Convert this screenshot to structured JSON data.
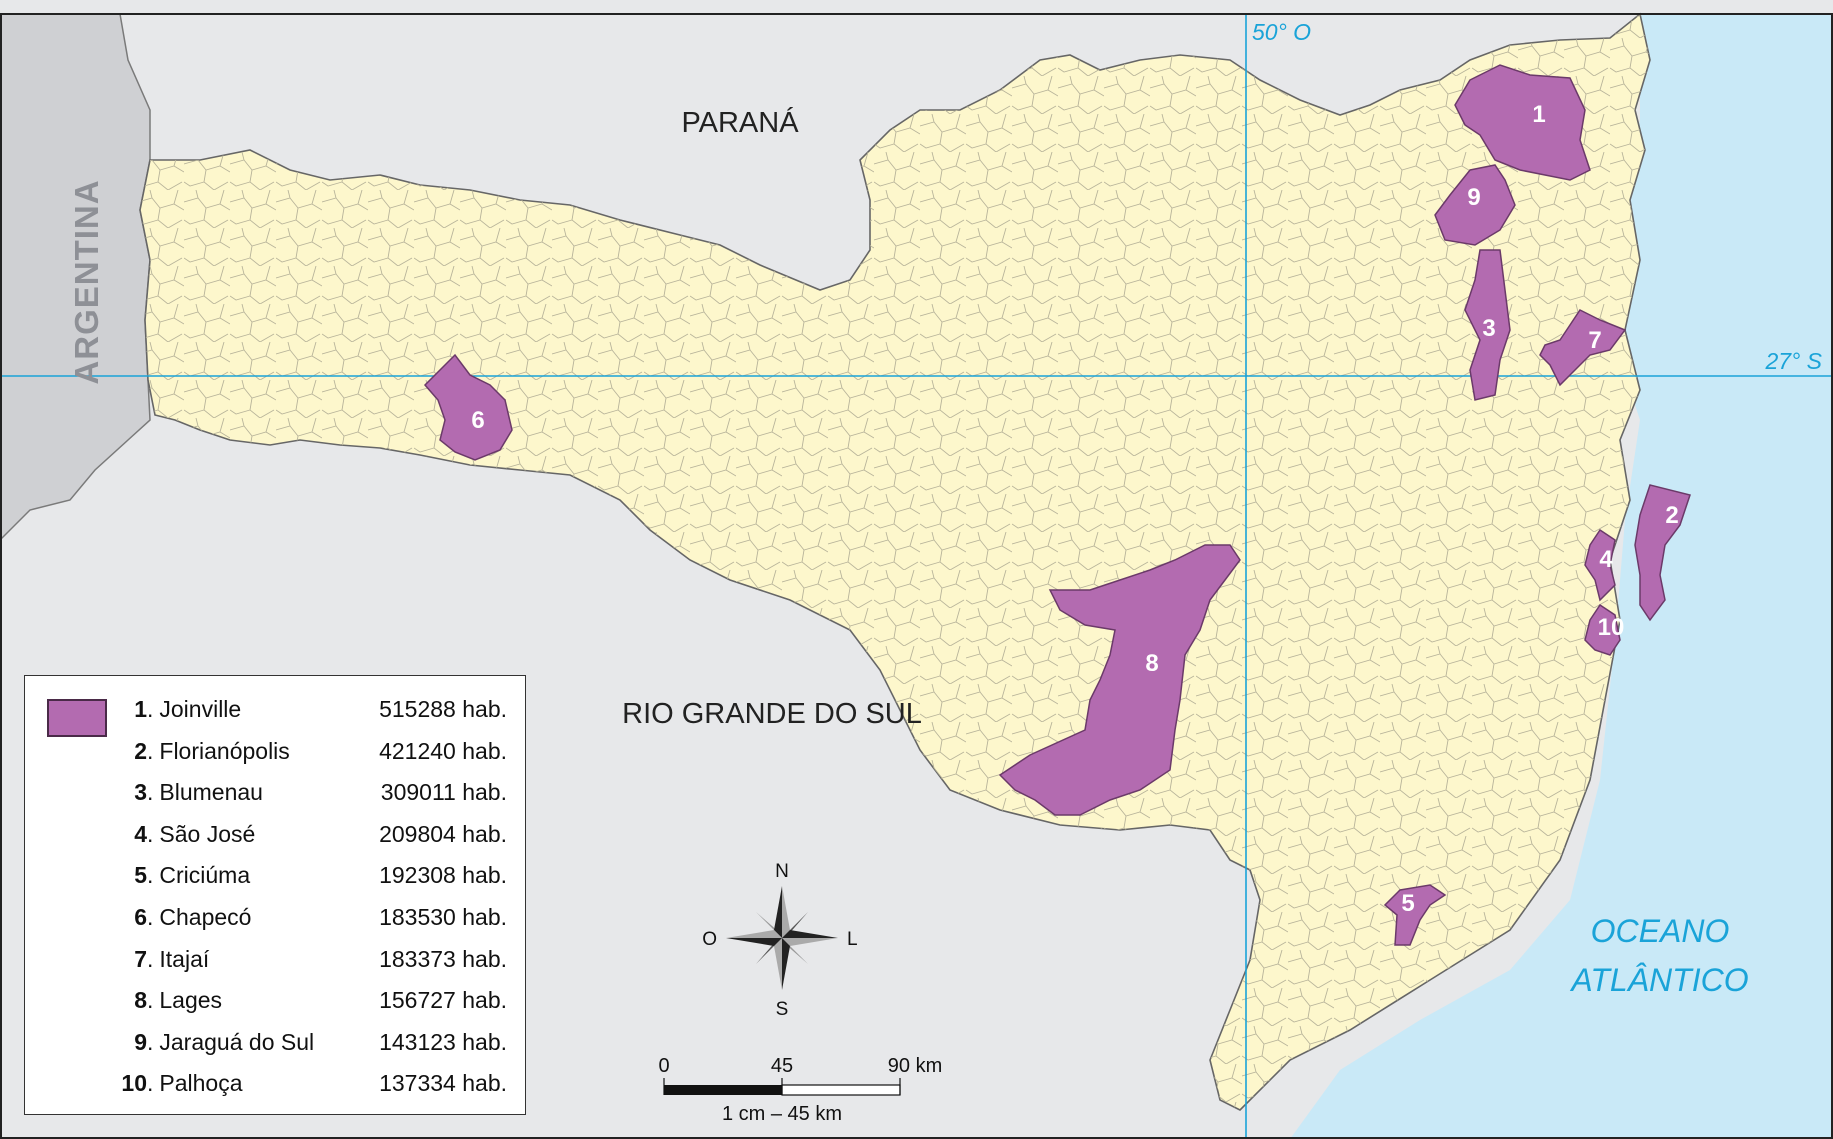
{
  "regions": {
    "parana": "PARANÁ",
    "rio_grande_do_sul": "RIO GRANDE DO SUL",
    "argentina": "ARGENTINA"
  },
  "coordinates": {
    "longitude": "50° O",
    "latitude": "27° S"
  },
  "ocean": {
    "line1": "OCEANO",
    "line2": "ATLÂNTICO"
  },
  "colors": {
    "state_fill": "#fdf7cc",
    "neighbor_fill": "#e7e8ea",
    "argentina_fill": "#cfd0d3",
    "ocean_fill": "#c9e9f7",
    "city_fill": "#b36bb0",
    "grid_line": "#1aa3d8"
  },
  "compass": {
    "n": "N",
    "s": "S",
    "e": "L",
    "w": "O"
  },
  "scale": {
    "t0": "0",
    "t1": "45",
    "t2": "90 km",
    "caption": "1 cm – 45 km"
  },
  "cities": [
    {
      "num": "1",
      "sep": ".",
      "name": "Joinville",
      "pop": "515288 hab."
    },
    {
      "num": "2",
      "sep": ".",
      "name": "Florianópolis",
      "pop": "421240 hab."
    },
    {
      "num": "3",
      "sep": ".",
      "name": "Blumenau",
      "pop": "309011 hab."
    },
    {
      "num": "4",
      "sep": ".",
      "name": "São José",
      "pop": "209804 hab."
    },
    {
      "num": "5",
      "sep": ".",
      "name": "Criciúma",
      "pop": "192308 hab."
    },
    {
      "num": "6",
      "sep": ".",
      "name": "Chapecó",
      "pop": "183530 hab."
    },
    {
      "num": "7",
      "sep": ".",
      "name": "Itajaí",
      "pop": "183373 hab."
    },
    {
      "num": "8",
      "sep": ".",
      "name": "Lages",
      "pop": "156727 hab."
    },
    {
      "num": "9",
      "sep": ".",
      "name": "Jaraguá do Sul",
      "pop": "143123 hab."
    },
    {
      "num": "10",
      "sep": ".",
      "name": "Palhoça",
      "pop": "137334 hab."
    }
  ]
}
